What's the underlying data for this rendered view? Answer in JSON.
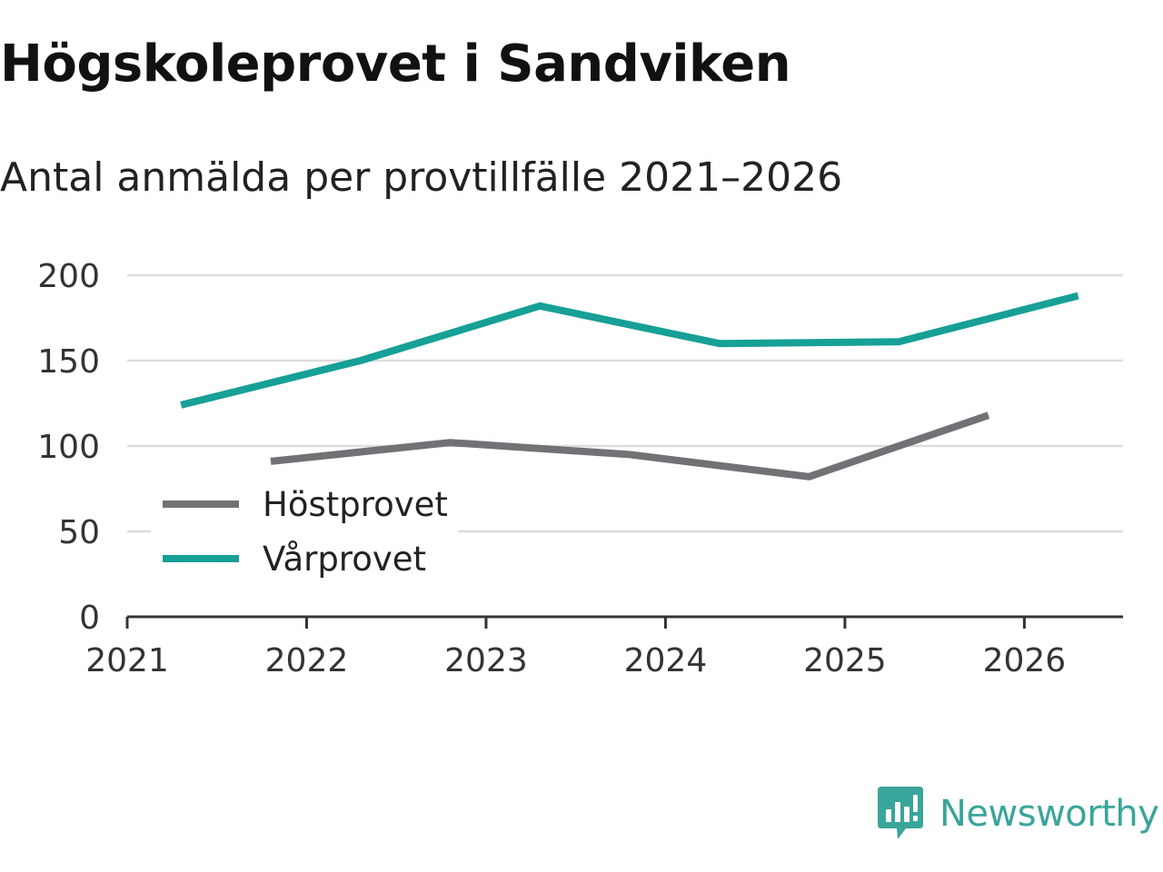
{
  "title": "Högskoleprovet i Sandviken",
  "subtitle": "Antal anmälda per provtillfälle 2021–2026",
  "brand": "Newsworthy",
  "colors": {
    "host": "#717176",
    "var": "#17a096",
    "grid": "#dddddd",
    "axis": "#333333",
    "brand": "#3aa59a"
  },
  "chart_data": {
    "type": "line",
    "title": "Högskoleprovet i Sandviken",
    "subtitle": "Antal anmälda per provtillfälle 2021–2026",
    "xlabel": "",
    "ylabel": "",
    "xlim": [
      2021,
      2026.55
    ],
    "ylim": [
      0,
      200
    ],
    "x_ticks": [
      "2021",
      "2022",
      "2023",
      "2024",
      "2025",
      "2026"
    ],
    "y_ticks": [
      "0",
      "50",
      "100",
      "150",
      "200"
    ],
    "grid": true,
    "legend_position": "bottom-left",
    "series": [
      {
        "name": "Höstprovet",
        "color": "#717176",
        "x": [
          2021.8,
          2022.8,
          2023.8,
          2024.8,
          2025.8
        ],
        "values": [
          91,
          102,
          95,
          82,
          118
        ]
      },
      {
        "name": "Vårprovet",
        "color": "#17a096",
        "x": [
          2021.3,
          2022.3,
          2023.3,
          2024.3,
          2025.3,
          2026.3
        ],
        "values": [
          124,
          150,
          182,
          160,
          161,
          188
        ]
      }
    ]
  }
}
